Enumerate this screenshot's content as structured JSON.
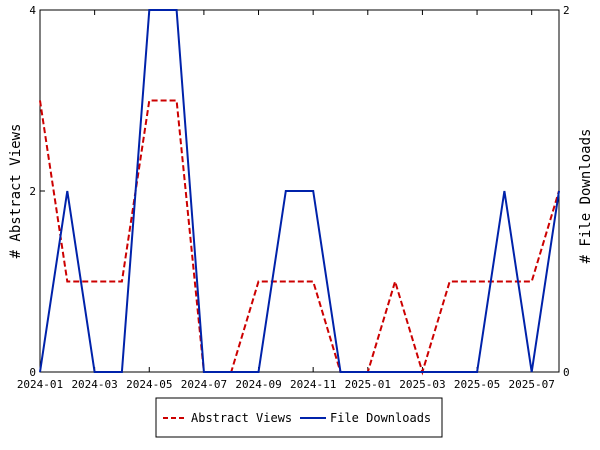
{
  "chart_data": {
    "type": "line",
    "x": [
      "2024-01",
      "2024-02",
      "2024-03",
      "2024-04",
      "2024-05",
      "2024-06",
      "2024-07",
      "2024-08",
      "2024-09",
      "2024-10",
      "2024-11",
      "2024-12",
      "2025-01",
      "2025-02",
      "2025-03",
      "2025-04",
      "2025-05",
      "2025-06",
      "2025-07",
      "2025-08"
    ],
    "x_tick_labels": [
      "2024-01",
      "2024-03",
      "2024-05",
      "2024-07",
      "2024-09",
      "2024-11",
      "2025-01",
      "2025-03",
      "2025-05",
      "2025-07"
    ],
    "series": [
      {
        "name": "Abstract Views",
        "axis": "left",
        "color": "#cc0000",
        "style": "dashed",
        "values": [
          3,
          1,
          1,
          1,
          3,
          3,
          0,
          0,
          1,
          1,
          1,
          0,
          0,
          1,
          0,
          1,
          1,
          1,
          1,
          2
        ]
      },
      {
        "name": "File Downloads",
        "axis": "right",
        "color": "#0022aa",
        "style": "solid",
        "values": [
          0,
          1,
          0,
          0,
          2,
          2,
          0,
          0,
          0,
          1,
          1,
          0,
          0,
          0,
          0,
          0,
          0,
          1,
          0,
          1
        ]
      }
    ],
    "ylabel": "# Abstract Views",
    "y2label": "# File Downloads",
    "ylim": [
      0,
      4
    ],
    "y2lim": [
      0,
      2
    ],
    "y_ticks": [
      "0",
      "2",
      "4"
    ],
    "y2_ticks": [
      "0",
      "2"
    ],
    "grid": false,
    "legend_position": "bottom"
  }
}
